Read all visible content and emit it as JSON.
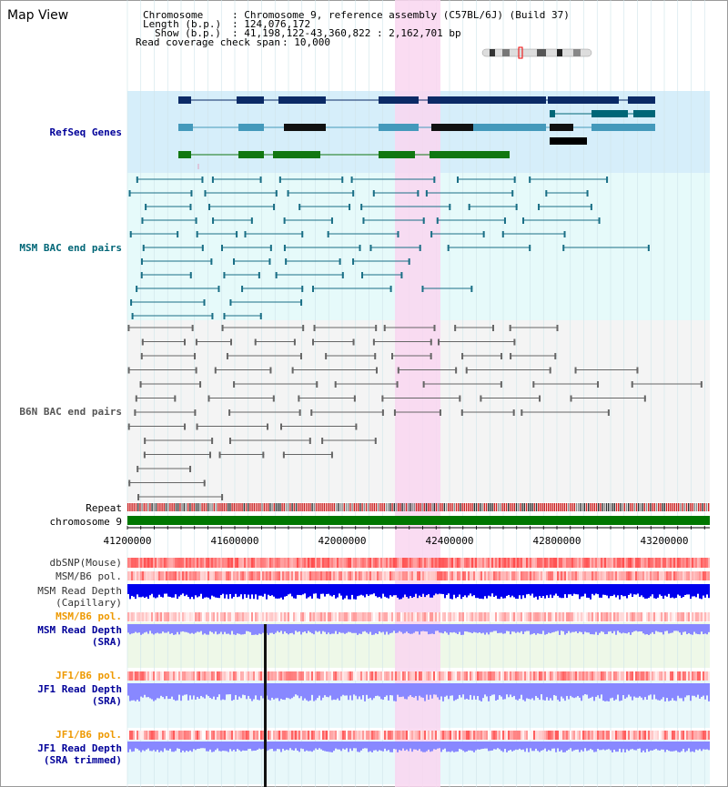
{
  "page": {
    "title": "Map View"
  },
  "info": {
    "chromosome_label": "Chromosome",
    "chromosome_value": ": Chromosome 9, reference assembly (C57BL/6J) (Build 37)",
    "length_label": "Length (b.p.)",
    "length_value": ": 124,076,172",
    "show_label": "Show (b.p.)",
    "show_value": ": 41,198,122-43,360,822 : 2,162,701 bp",
    "coverage_label": "Read coverage check span",
    "coverage_value": ": 10,000"
  },
  "tracks": {
    "refseq": "RefSeq Genes",
    "msm_bac": "MSM BAC end pairs",
    "b6n_bac": "B6N BAC end pairs",
    "repeat": "Repeat",
    "chrom": "chromosome 9",
    "dbsnp": "dbSNP(Mouse)",
    "msm_b6_pol": "MSM/B6 pol.",
    "msm_depth_cap_1": "MSM Read Depth",
    "msm_depth_cap_2": "(Capillary)",
    "msm_b6_pol2": "MSM/B6 pol.",
    "msm_depth_sra_1": "MSM Read Depth",
    "msm_depth_sra_2": "(SRA)",
    "jf1_b6_pol": "JF1/B6 pol.",
    "jf1_depth_sra_1": "JF1 Read Depth",
    "jf1_depth_sra_2": "(SRA)",
    "jf1_b6_pol2": "JF1/B6 pol.",
    "jf1_depth_trim_1": "JF1 Read Depth",
    "jf1_depth_trim_2": "(SRA trimmed)"
  },
  "axis": {
    "ticks": [
      "41200000",
      "41600000",
      "42000000",
      "42400000",
      "42800000",
      "43200000"
    ]
  },
  "colors": {
    "refseq_bg": "#d6eefa",
    "msm_bg": "#e6fafa",
    "b6n_bg": "#f4f4f4",
    "highlight": "#f9d6f0",
    "label_blue": "#000099",
    "label_teal": "#006677",
    "label_gray": "#555555",
    "label_orange": "#ee9900",
    "chrom_green": "#007700",
    "depth_blue": "#0000ee",
    "depth_light": "#8888ff"
  }
}
